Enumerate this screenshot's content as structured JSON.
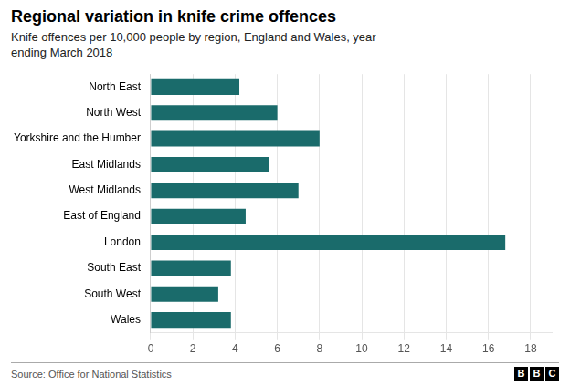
{
  "chart_data": {
    "type": "bar",
    "orientation": "horizontal",
    "title": "Regional variation in knife crime offences",
    "subtitle": "Knife offences per 10,000 people by region, England and Wales, year\nending March 2018",
    "source": "Source: Office for National Statistics",
    "annotations": [
      "BBC"
    ],
    "categories": [
      "Wales",
      "South West",
      "South East",
      "London",
      "East of England",
      "West Midlands",
      "East Midlands",
      "Yorkshire and the Humber",
      "North West",
      "North East"
    ],
    "values": [
      3.8,
      3.2,
      3.8,
      16.8,
      4.5,
      7.0,
      5.6,
      8.0,
      6.0,
      4.2
    ],
    "color": "#1a6b6b",
    "xlim": [
      0,
      19
    ],
    "xticks": [
      0,
      2,
      4,
      6,
      8,
      10,
      12,
      14,
      16,
      18
    ],
    "grid": true
  }
}
